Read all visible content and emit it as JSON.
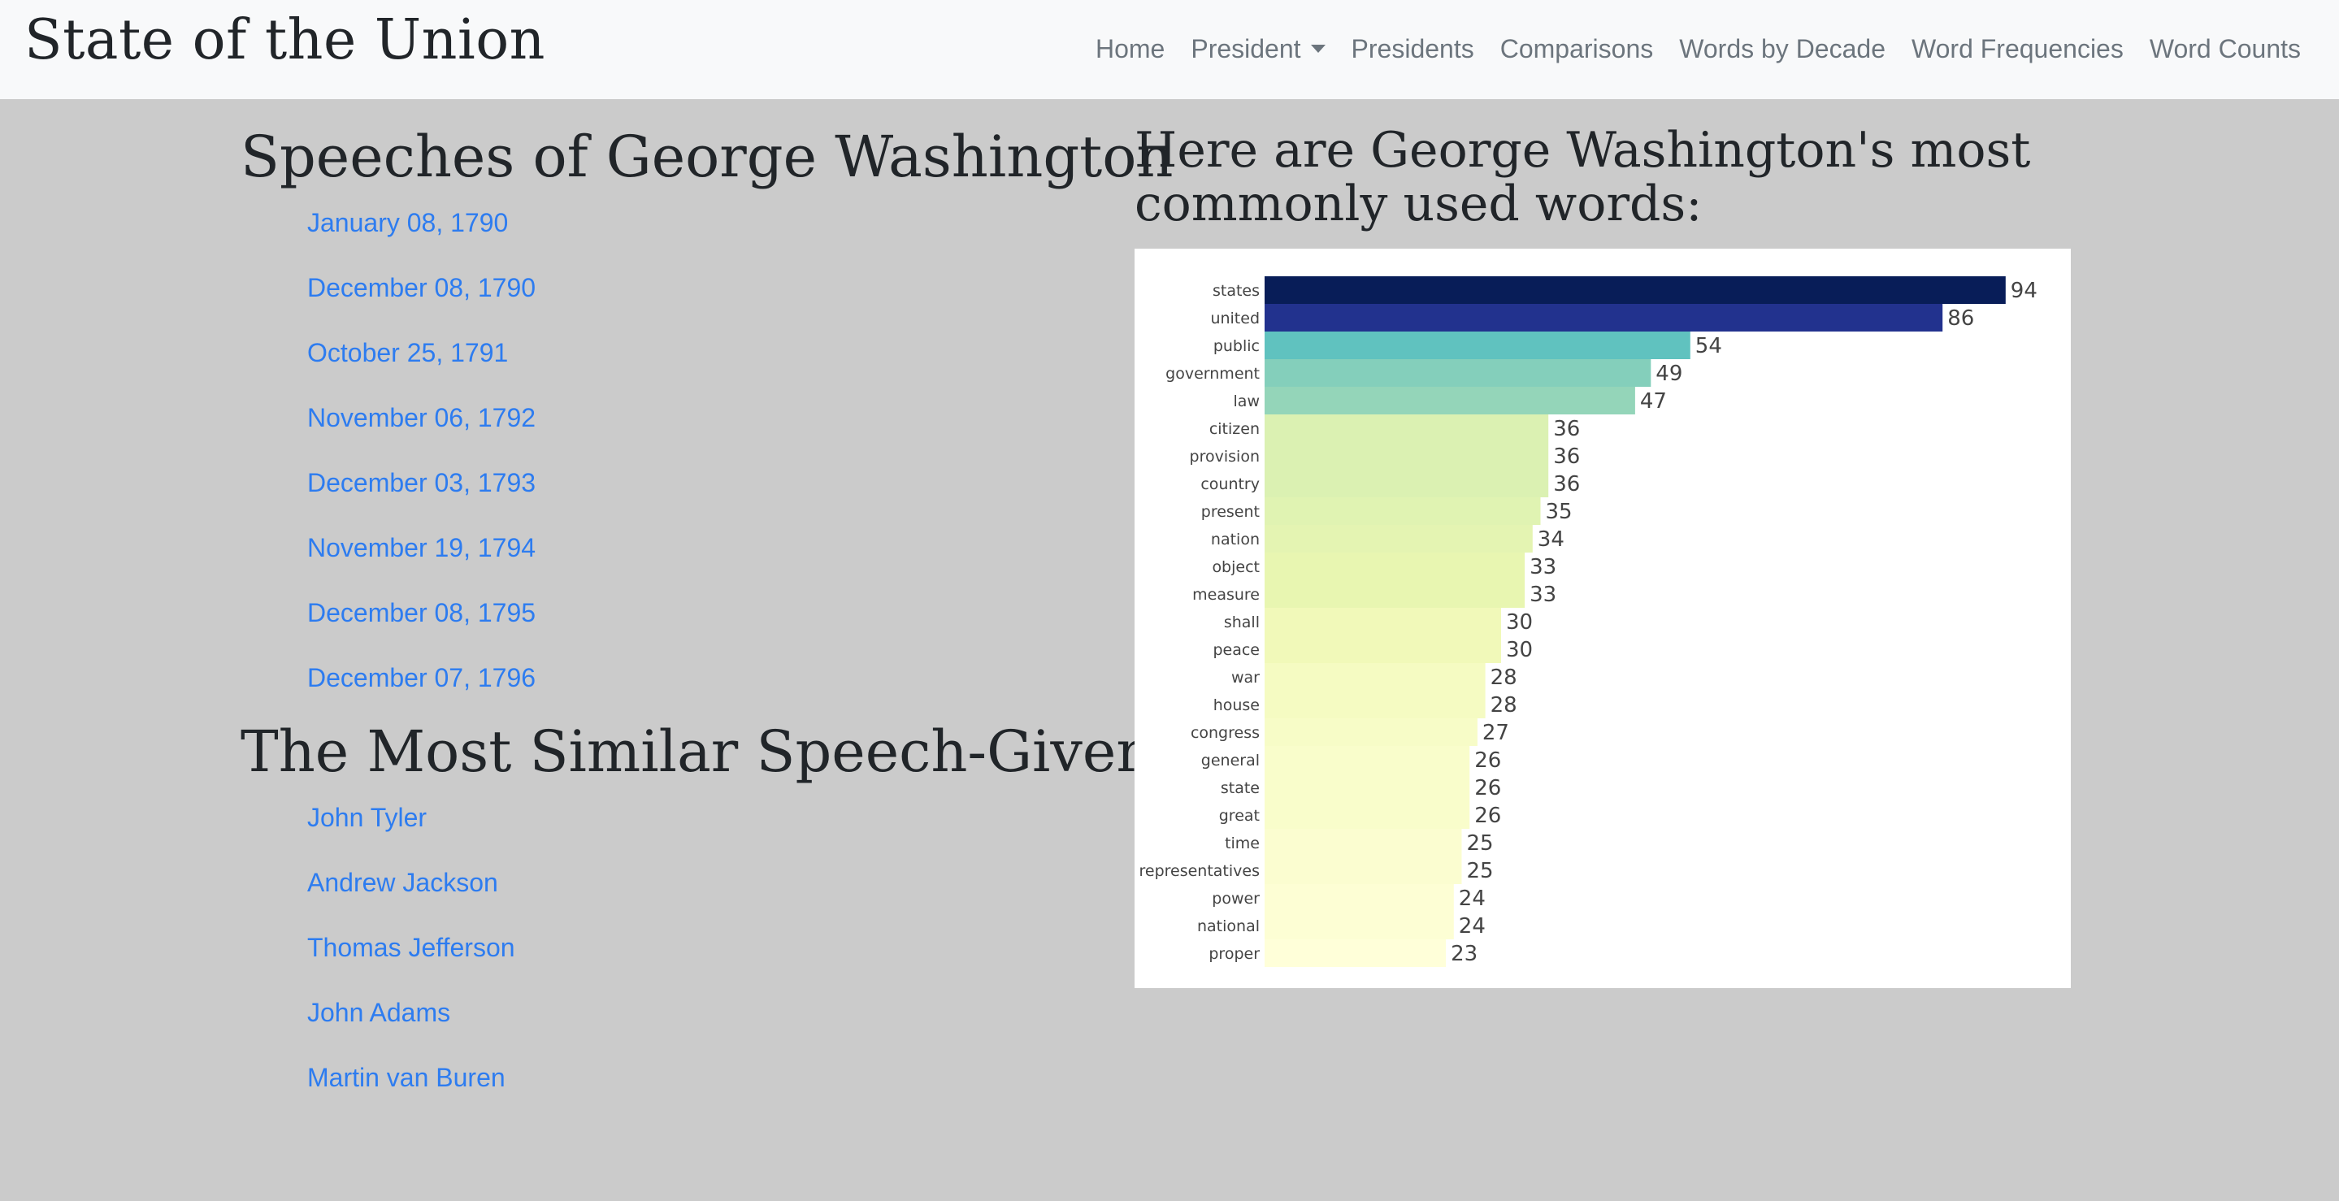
{
  "nav": {
    "brand": "State of the Union",
    "items": [
      {
        "label": "Home"
      },
      {
        "label": "President",
        "dropdown": true
      },
      {
        "label": "Presidents"
      },
      {
        "label": "Comparisons"
      },
      {
        "label": "Words by Decade"
      },
      {
        "label": "Word Frequencies"
      },
      {
        "label": "Word Counts"
      }
    ]
  },
  "speeches": {
    "title": "Speeches of George Washington",
    "items": [
      "January 08, 1790",
      "December 08, 1790",
      "October 25, 1791",
      "November 06, 1792",
      "December 03, 1793",
      "November 19, 1794",
      "December 08, 1795",
      "December 07, 1796"
    ]
  },
  "similar": {
    "title": "The Most Similar Speech-Givers",
    "items": [
      "John Tyler",
      "Andrew Jackson",
      "Thomas Jefferson",
      "John Adams",
      "Martin van Buren"
    ]
  },
  "words": {
    "title": "Here are George Washington's most commonly used words:"
  },
  "colors": {
    "background": "#cbcbcb",
    "navbar": "#f8f9fa",
    "link": "#2d7cf0",
    "colorscale": "YlGnBu"
  },
  "chart_data": {
    "type": "bar",
    "orientation": "horizontal",
    "title": "",
    "xlabel": "",
    "ylabel": "",
    "categories": [
      "states",
      "united",
      "public",
      "government",
      "law",
      "citizen",
      "provision",
      "country",
      "present",
      "nation",
      "object",
      "measure",
      "shall",
      "peace",
      "war",
      "house",
      "congress",
      "general",
      "state",
      "great",
      "time",
      "representatives",
      "power",
      "national",
      "proper"
    ],
    "values": [
      94,
      86,
      54,
      49,
      47,
      36,
      36,
      36,
      35,
      34,
      33,
      33,
      30,
      30,
      28,
      28,
      27,
      26,
      26,
      26,
      25,
      25,
      24,
      24,
      23
    ],
    "data_labels": true,
    "grid": false,
    "legend": false
  }
}
